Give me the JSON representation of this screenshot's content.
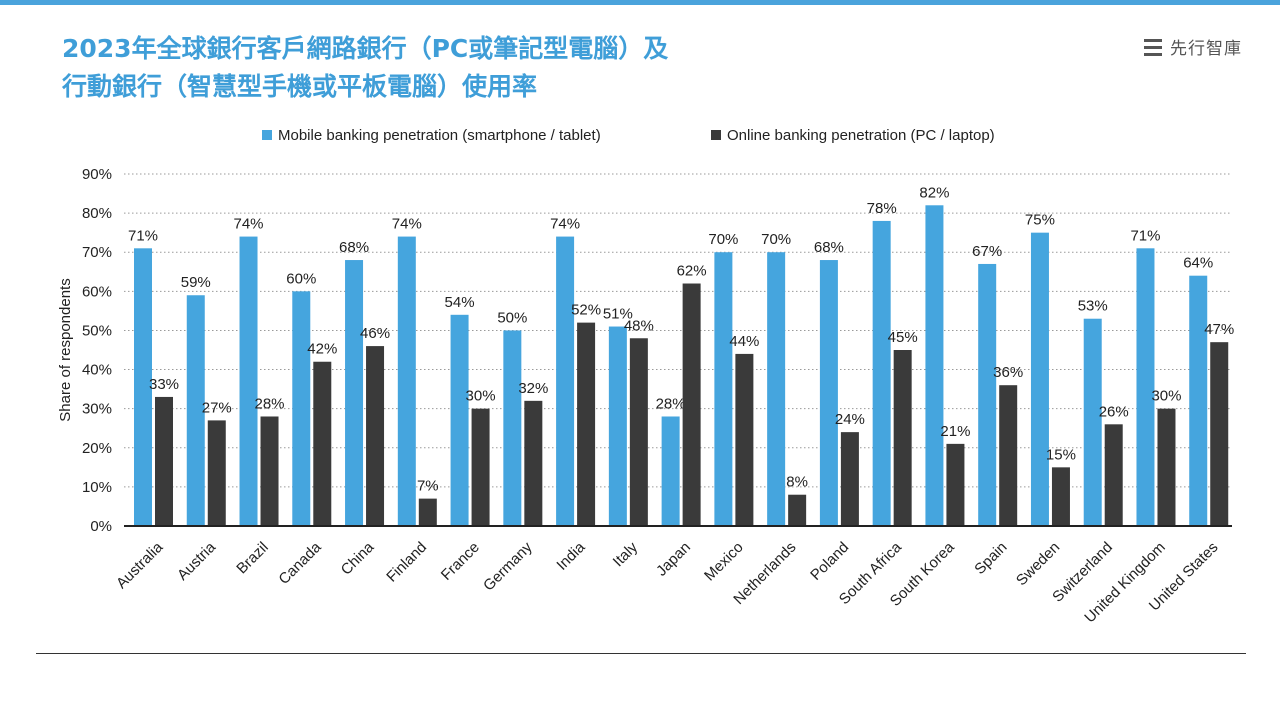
{
  "page": {
    "title_line1": "2023年全球銀行客戶網路銀行（PC或筆記型電腦）及",
    "title_line2": "行動銀行（智慧型手機或平板電腦）使用率",
    "brand": "先行智庫",
    "brand_icon": "stacked-lines-icon",
    "accent_color": "#3f9ed8"
  },
  "chart_data": {
    "type": "bar",
    "title": "",
    "xlabel": "",
    "ylabel": "Share of respondents",
    "ylim": [
      0,
      90
    ],
    "yticks": [
      "0%",
      "10%",
      "20%",
      "30%",
      "40%",
      "50%",
      "60%",
      "70%",
      "80%",
      "90%"
    ],
    "grid": "horizontal-dotted",
    "legend_position": "top-center",
    "categories": [
      "Australia",
      "Austria",
      "Brazil",
      "Canada",
      "China",
      "Finland",
      "France",
      "Germany",
      "India",
      "Italy",
      "Japan",
      "Mexico",
      "Netherlands",
      "Poland",
      "South Africa",
      "South Korea",
      "Spain",
      "Sweden",
      "Switzerland",
      "United Kingdom",
      "United States"
    ],
    "series": [
      {
        "name": "Mobile banking penetration (smartphone / tablet)",
        "color": "#45a5de",
        "values": [
          71,
          59,
          74,
          60,
          68,
          74,
          54,
          50,
          74,
          51,
          28,
          70,
          70,
          68,
          78,
          82,
          67,
          75,
          53,
          71,
          64
        ],
        "labels": [
          "71%",
          "59%",
          "74%",
          "60%",
          "68%",
          "74%",
          "54%",
          "50%",
          "74%",
          "51%",
          "28%",
          "70%",
          "70%",
          "68%",
          "78%",
          "82%",
          "67%",
          "75%",
          "53%",
          "71%",
          "64%"
        ]
      },
      {
        "name": "Online banking penetration (PC / laptop)",
        "color": "#3a3a3a",
        "values": [
          33,
          27,
          28,
          42,
          46,
          7,
          30,
          32,
          52,
          48,
          62,
          44,
          8,
          24,
          45,
          21,
          36,
          15,
          26,
          30,
          47
        ],
        "labels": [
          "33%",
          "27%",
          "28%",
          "42%",
          "46%",
          "7%",
          "30%",
          "32%",
          "52%",
          "48%",
          "62%",
          "44%",
          "8%",
          "24%",
          "45%",
          "21%",
          "36%",
          "15%",
          "26%",
          "30%",
          "47%"
        ]
      }
    ]
  }
}
